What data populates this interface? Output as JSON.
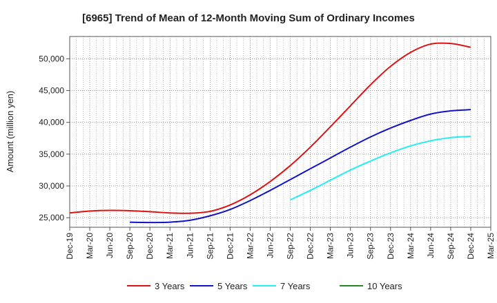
{
  "chart_data": {
    "type": "line",
    "title": "[6965]  Trend of Mean of 12-Month Moving Sum of Ordinary Incomes",
    "xlabel": "",
    "ylabel": "Amount (million yen)",
    "ylim": [
      23500,
      53500
    ],
    "yticks": [
      25000,
      30000,
      35000,
      40000,
      45000,
      50000
    ],
    "ytick_labels": [
      "25,000",
      "30,000",
      "35,000",
      "40,000",
      "45,000",
      "50,000"
    ],
    "categories": [
      "Dec-19",
      "Mar-20",
      "Jun-20",
      "Sep-20",
      "Dec-20",
      "Mar-21",
      "Jun-21",
      "Sep-21",
      "Dec-21",
      "Mar-22",
      "Jun-22",
      "Sep-22",
      "Dec-22",
      "Mar-23",
      "Jun-23",
      "Sep-23",
      "Dec-23",
      "Mar-24",
      "Jun-24",
      "Sep-24",
      "Dec-24",
      "Mar-25"
    ],
    "grid": true,
    "legend_position": "bottom",
    "series": [
      {
        "name": "3 Years",
        "color": "#dd1111",
        "values": [
          25750,
          26050,
          26150,
          26100,
          25950,
          25750,
          25700,
          26000,
          27000,
          28600,
          30700,
          33200,
          36100,
          39300,
          42600,
          45900,
          48800,
          51000,
          52300,
          52400,
          51800,
          null
        ]
      },
      {
        "name": "5 Years",
        "color": "#1111cc",
        "values": [
          null,
          null,
          null,
          24300,
          24250,
          24300,
          24600,
          25300,
          26300,
          27700,
          29300,
          31000,
          32700,
          34400,
          36100,
          37700,
          39100,
          40300,
          41300,
          41800,
          42000,
          null
        ]
      },
      {
        "name": "7 Years",
        "color": "#22eeee",
        "values": [
          null,
          null,
          null,
          null,
          null,
          null,
          null,
          null,
          null,
          null,
          null,
          27800,
          29300,
          30900,
          32500,
          33900,
          35200,
          36300,
          37100,
          37600,
          37800,
          null
        ]
      },
      {
        "name": "10 Years",
        "color": "#228822",
        "values": [
          null,
          null,
          null,
          null,
          null,
          null,
          null,
          null,
          null,
          null,
          null,
          null,
          null,
          null,
          null,
          null,
          null,
          null,
          null,
          null,
          null,
          null
        ]
      }
    ]
  }
}
